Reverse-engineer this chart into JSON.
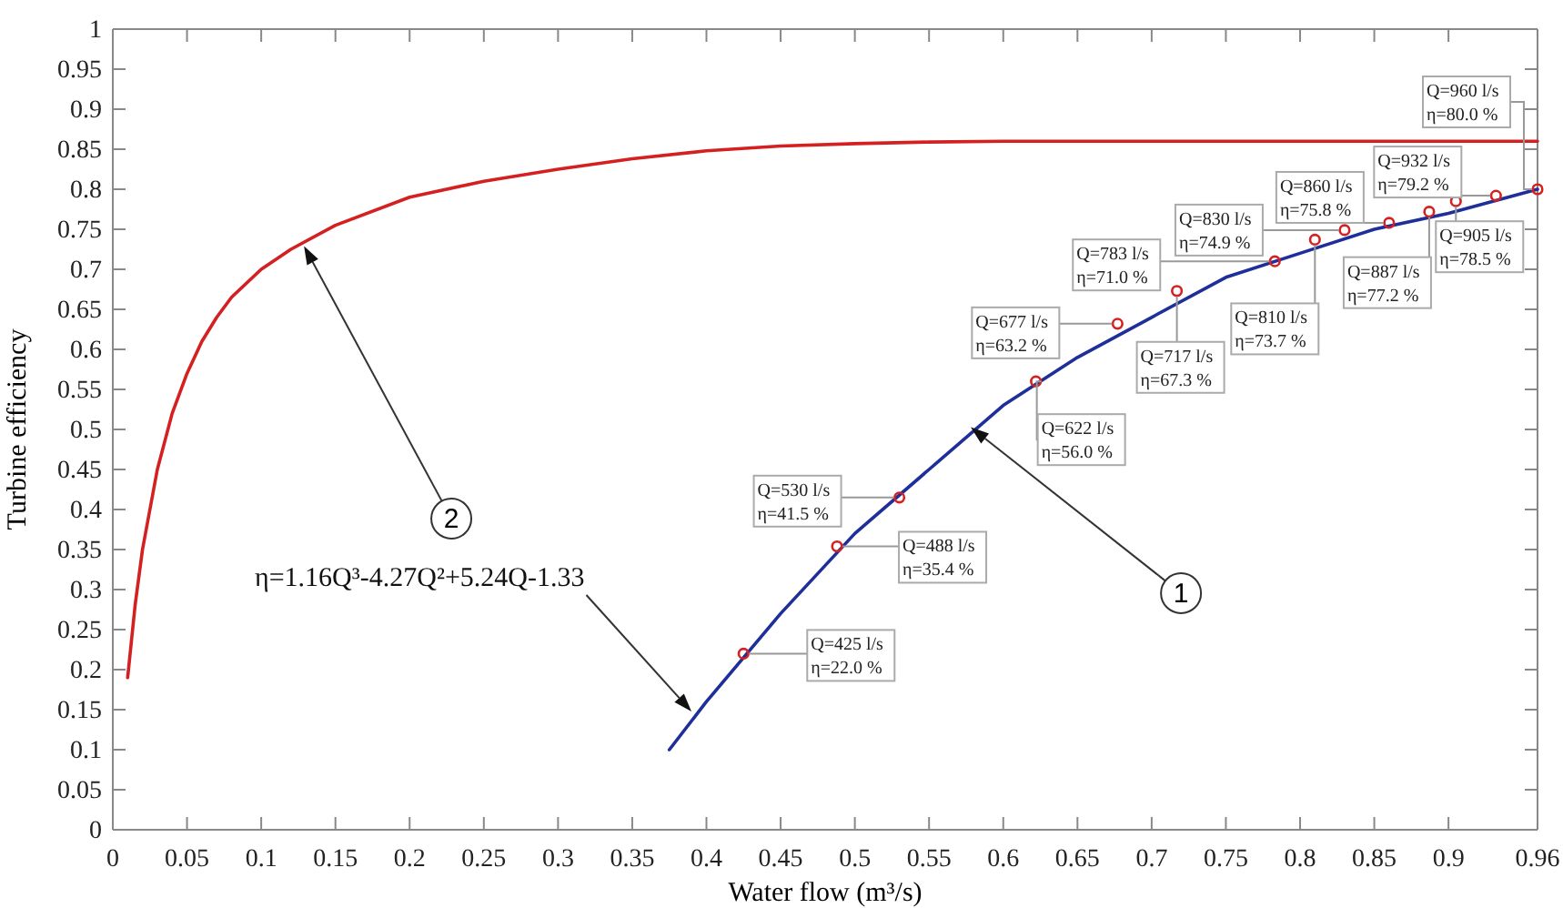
{
  "chart_data": {
    "type": "line",
    "xlabel": "Water flow (m³/s)",
    "ylabel": "Turbine efficiency",
    "xlim": [
      0,
      0.96
    ],
    "ylim": [
      0,
      1
    ],
    "xticks": [
      0,
      0.05,
      0.1,
      0.15,
      0.2,
      0.25,
      0.3,
      0.35,
      0.4,
      0.45,
      0.5,
      0.55,
      0.6,
      0.65,
      0.7,
      0.75,
      0.8,
      0.85,
      0.9,
      0.96
    ],
    "yticks": [
      0,
      0.05,
      0.1,
      0.15,
      0.2,
      0.25,
      0.3,
      0.35,
      0.4,
      0.45,
      0.5,
      0.55,
      0.6,
      0.65,
      0.7,
      0.75,
      0.8,
      0.85,
      0.9,
      0.95,
      1
    ],
    "grid": false,
    "line_style": "solid",
    "series": [
      {
        "color": "#d42020",
        "x": [
          0.01,
          0.015,
          0.02,
          0.03,
          0.04,
          0.05,
          0.06,
          0.07,
          0.08,
          0.1,
          0.12,
          0.15,
          0.2,
          0.25,
          0.3,
          0.35,
          0.4,
          0.45,
          0.5,
          0.55,
          0.6,
          0.96
        ],
        "values": [
          0.19,
          0.28,
          0.35,
          0.45,
          0.52,
          0.57,
          0.61,
          0.64,
          0.665,
          0.7,
          0.725,
          0.755,
          0.79,
          0.81,
          0.825,
          0.838,
          0.848,
          0.854,
          0.857,
          0.859,
          0.86,
          0.86
        ]
      },
      {
        "color": "#1f2f9a",
        "x": [
          0.375,
          0.4,
          0.45,
          0.5,
          0.55,
          0.6,
          0.65,
          0.7,
          0.75,
          0.8,
          0.85,
          0.9,
          0.96
        ],
        "values": [
          0.1,
          0.16,
          0.27,
          0.37,
          0.45,
          0.53,
          0.59,
          0.64,
          0.69,
          0.72,
          0.75,
          0.77,
          0.8
        ]
      },
      {
        "type": "scatter",
        "color": "#d42020",
        "marker": "circle",
        "x": [
          0.425,
          0.488,
          0.53,
          0.622,
          0.677,
          0.717,
          0.783,
          0.81,
          0.83,
          0.86,
          0.887,
          0.905,
          0.932,
          0.96
        ],
        "values": [
          0.22,
          0.354,
          0.415,
          0.56,
          0.632,
          0.673,
          0.71,
          0.737,
          0.749,
          0.758,
          0.772,
          0.785,
          0.792,
          0.8
        ]
      }
    ],
    "annotations": [
      {
        "text": "Q=425 l/s\nη=22.0 %",
        "x": 0.425,
        "y": 0.22
      },
      {
        "text": "Q=488 l/s\nη=35.4 %",
        "x": 0.488,
        "y": 0.354
      },
      {
        "text": "Q=530 l/s\nη=41.5 %",
        "x": 0.53,
        "y": 0.415
      },
      {
        "text": "Q=622 l/s\nη=56.0 %",
        "x": 0.622,
        "y": 0.56
      },
      {
        "text": "Q=677 l/s\nη=63.2 %",
        "x": 0.677,
        "y": 0.632
      },
      {
        "text": "Q=717 l/s\nη=67.3 %",
        "x": 0.717,
        "y": 0.673
      },
      {
        "text": "Q=783 l/s\nη=71.0 %",
        "x": 0.783,
        "y": 0.71
      },
      {
        "text": "Q=810 l/s\nη=73.7 %",
        "x": 0.81,
        "y": 0.737
      },
      {
        "text": "Q=830 l/s\nη=74.9 %",
        "x": 0.83,
        "y": 0.749
      },
      {
        "text": "Q=860 l/s\nη=75.8 %",
        "x": 0.86,
        "y": 0.758
      },
      {
        "text": "Q=887 l/s\nη=77.2 %",
        "x": 0.887,
        "y": 0.772
      },
      {
        "text": "Q=905 l/s\nη=78.5 %",
        "x": 0.905,
        "y": 0.785
      },
      {
        "text": "Q=932 l/s\nη=79.2 %",
        "x": 0.932,
        "y": 0.792
      },
      {
        "text": "Q=960 l/s\nη=80.0 %",
        "x": 0.96,
        "y": 0.8
      },
      "η=1.16Q³-4.27Q²+5.24Q-1.33",
      {
        "text": "1",
        "x": 0.58,
        "y": 0.5
      },
      {
        "text": "2",
        "x": 0.13,
        "y": 0.725
      }
    ]
  }
}
